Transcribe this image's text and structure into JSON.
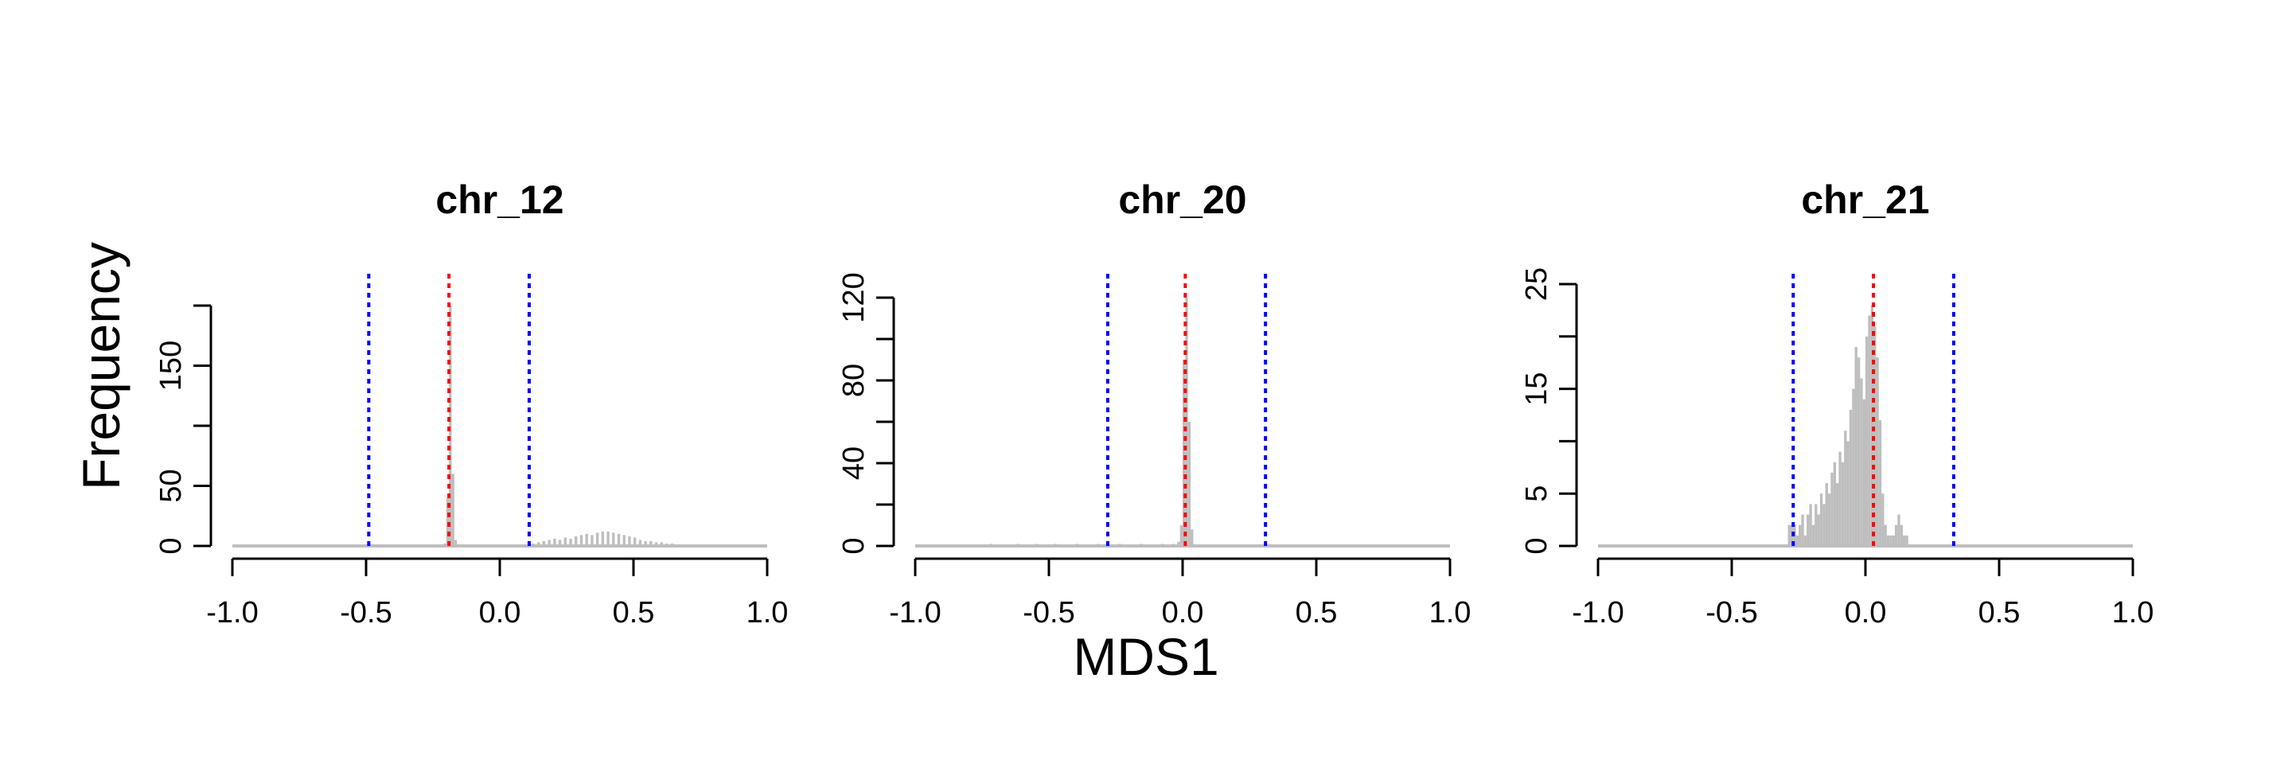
{
  "figure": {
    "ylabel": "Frequency",
    "xlabel": "MDS1"
  },
  "chart_data": [
    {
      "type": "histogram",
      "title": "chr_12",
      "xlim": [
        -1.0,
        1.0
      ],
      "ylim": [
        0,
        200
      ],
      "x_ticks": [
        "-1.0",
        "-0.5",
        "0.0",
        "0.5",
        "1.0"
      ],
      "y_ticks": [
        0,
        50,
        100,
        150,
        200
      ],
      "y_tick_labels": [
        "0",
        "50",
        "",
        "150",
        ""
      ],
      "bin_width": 0.01,
      "bins": [
        [
          -0.21,
          2
        ],
        [
          -0.2,
          40
        ],
        [
          -0.19,
          200
        ],
        [
          -0.18,
          60
        ],
        [
          -0.17,
          5
        ],
        [
          0.12,
          2
        ],
        [
          0.14,
          3
        ],
        [
          0.16,
          4
        ],
        [
          0.18,
          5
        ],
        [
          0.2,
          6
        ],
        [
          0.22,
          5
        ],
        [
          0.24,
          7
        ],
        [
          0.26,
          6
        ],
        [
          0.28,
          8
        ],
        [
          0.3,
          9
        ],
        [
          0.32,
          10
        ],
        [
          0.34,
          9
        ],
        [
          0.36,
          11
        ],
        [
          0.38,
          12
        ],
        [
          0.4,
          12
        ],
        [
          0.42,
          11
        ],
        [
          0.44,
          10
        ],
        [
          0.46,
          9
        ],
        [
          0.48,
          8
        ],
        [
          0.5,
          7
        ],
        [
          0.52,
          5
        ],
        [
          0.54,
          4
        ],
        [
          0.56,
          4
        ],
        [
          0.58,
          3
        ],
        [
          0.6,
          3
        ],
        [
          0.62,
          2
        ],
        [
          0.64,
          2
        ],
        [
          0.66,
          1
        ],
        [
          0.68,
          1
        ],
        [
          0.7,
          1
        ],
        [
          0.72,
          1
        ]
      ],
      "vlines": [
        {
          "x": -0.49,
          "color": "#0000ff"
        },
        {
          "x": -0.19,
          "color": "#ff0000"
        },
        {
          "x": 0.11,
          "color": "#0000ff"
        }
      ]
    },
    {
      "type": "histogram",
      "title": "chr_20",
      "xlim": [
        -1.0,
        1.0
      ],
      "ylim": [
        0,
        120
      ],
      "x_ticks": [
        "-1.0",
        "-0.5",
        "0.0",
        "0.5",
        "1.0"
      ],
      "y_ticks": [
        0,
        20,
        40,
        60,
        80,
        100,
        120
      ],
      "y_tick_labels": [
        "0",
        "",
        "40",
        "",
        "80",
        "",
        "120"
      ],
      "bin_width": 0.01,
      "bins": [
        [
          -0.72,
          1
        ],
        [
          -0.62,
          1
        ],
        [
          -0.55,
          1
        ],
        [
          -0.48,
          1
        ],
        [
          -0.4,
          1
        ],
        [
          -0.32,
          1
        ],
        [
          -0.24,
          1
        ],
        [
          -0.16,
          1
        ],
        [
          -0.08,
          1
        ],
        [
          -0.04,
          1
        ],
        [
          -0.02,
          2
        ],
        [
          -0.01,
          10
        ],
        [
          0.0,
          90
        ],
        [
          0.01,
          120
        ],
        [
          0.02,
          60
        ],
        [
          0.03,
          8
        ]
      ],
      "vlines": [
        {
          "x": -0.28,
          "color": "#0000ff"
        },
        {
          "x": 0.01,
          "color": "#ff0000"
        },
        {
          "x": 0.31,
          "color": "#0000ff"
        }
      ]
    },
    {
      "type": "histogram",
      "title": "chr_21",
      "xlim": [
        -1.0,
        1.0
      ],
      "ylim": [
        0,
        25
      ],
      "x_ticks": [
        "-1.0",
        "-0.5",
        "0.0",
        "0.5",
        "1.0"
      ],
      "y_ticks": [
        0,
        5,
        10,
        15,
        20,
        25
      ],
      "y_tick_labels": [
        "0",
        "5",
        "",
        "15",
        "",
        "25"
      ],
      "bin_width": 0.01,
      "bins": [
        [
          -0.29,
          2
        ],
        [
          -0.28,
          2
        ],
        [
          -0.27,
          2
        ],
        [
          -0.26,
          1
        ],
        [
          -0.25,
          2
        ],
        [
          -0.24,
          3
        ],
        [
          -0.23,
          1
        ],
        [
          -0.22,
          3
        ],
        [
          -0.21,
          4
        ],
        [
          -0.2,
          2
        ],
        [
          -0.19,
          4
        ],
        [
          -0.18,
          3
        ],
        [
          -0.17,
          5
        ],
        [
          -0.16,
          4
        ],
        [
          -0.15,
          6
        ],
        [
          -0.14,
          5
        ],
        [
          -0.13,
          7
        ],
        [
          -0.12,
          8
        ],
        [
          -0.11,
          6
        ],
        [
          -0.1,
          9
        ],
        [
          -0.09,
          8
        ],
        [
          -0.08,
          11
        ],
        [
          -0.07,
          10
        ],
        [
          -0.06,
          13
        ],
        [
          -0.05,
          15
        ],
        [
          -0.04,
          19
        ],
        [
          -0.03,
          18
        ],
        [
          -0.02,
          16
        ],
        [
          -0.01,
          14
        ],
        [
          0.0,
          20
        ],
        [
          0.01,
          22
        ],
        [
          0.02,
          23
        ],
        [
          0.03,
          21
        ],
        [
          0.04,
          18
        ],
        [
          0.05,
          12
        ],
        [
          0.06,
          5
        ],
        [
          0.07,
          2
        ],
        [
          0.08,
          1
        ],
        [
          0.09,
          1
        ],
        [
          0.1,
          1
        ],
        [
          0.11,
          2
        ],
        [
          0.12,
          3
        ],
        [
          0.13,
          2
        ],
        [
          0.14,
          1
        ],
        [
          0.15,
          1
        ]
      ],
      "vlines": [
        {
          "x": -0.27,
          "color": "#0000ff"
        },
        {
          "x": 0.03,
          "color": "#ff0000"
        },
        {
          "x": 0.33,
          "color": "#0000ff"
        }
      ]
    }
  ]
}
